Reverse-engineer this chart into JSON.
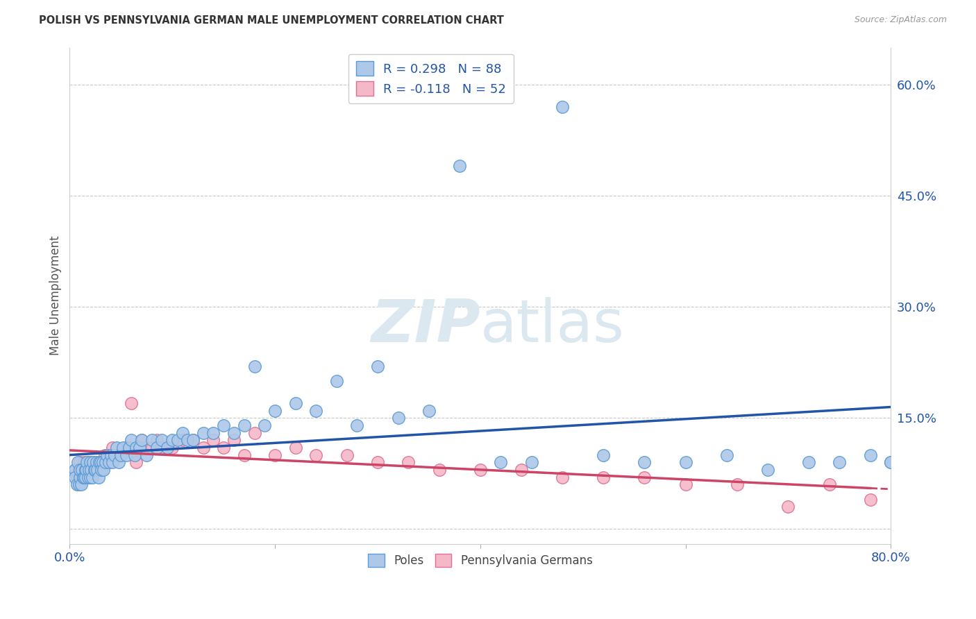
{
  "title": "POLISH VS PENNSYLVANIA GERMAN MALE UNEMPLOYMENT CORRELATION CHART",
  "source": "Source: ZipAtlas.com",
  "ylabel": "Male Unemployment",
  "xlim": [
    0.0,
    0.8
  ],
  "ylim": [
    -0.02,
    0.65
  ],
  "yticks": [
    0.0,
    0.15,
    0.3,
    0.45,
    0.6
  ],
  "ytick_labels": [
    "",
    "15.0%",
    "30.0%",
    "45.0%",
    "60.0%"
  ],
  "background_color": "#ffffff",
  "grid_color": "#c8c8c8",
  "poles_color": "#adc8e8",
  "poles_edge_color": "#5b9bd5",
  "pa_german_color": "#f4b8c8",
  "pa_german_edge_color": "#e07090",
  "trend_poles_color": "#2255aa",
  "trend_pa_color": "#cc4466",
  "legend_text_color": "#2255aa",
  "watermark_color": "#dce8f0",
  "poles_x": [
    0.005,
    0.005,
    0.007,
    0.008,
    0.009,
    0.01,
    0.01,
    0.011,
    0.012,
    0.013,
    0.014,
    0.015,
    0.015,
    0.016,
    0.017,
    0.018,
    0.019,
    0.02,
    0.02,
    0.021,
    0.022,
    0.023,
    0.024,
    0.025,
    0.026,
    0.027,
    0.028,
    0.029,
    0.03,
    0.031,
    0.032,
    0.033,
    0.035,
    0.036,
    0.038,
    0.04,
    0.042,
    0.044,
    0.046,
    0.048,
    0.05,
    0.052,
    0.055,
    0.058,
    0.06,
    0.063,
    0.065,
    0.068,
    0.07,
    0.075,
    0.08,
    0.085,
    0.09,
    0.095,
    0.1,
    0.105,
    0.11,
    0.115,
    0.12,
    0.13,
    0.14,
    0.15,
    0.16,
    0.17,
    0.18,
    0.19,
    0.2,
    0.22,
    0.24,
    0.26,
    0.28,
    0.3,
    0.32,
    0.35,
    0.38,
    0.42,
    0.45,
    0.48,
    0.52,
    0.56,
    0.6,
    0.64,
    0.68,
    0.72,
    0.75,
    0.78,
    0.8,
    0.8
  ],
  "poles_y": [
    0.08,
    0.07,
    0.06,
    0.09,
    0.06,
    0.07,
    0.08,
    0.06,
    0.08,
    0.07,
    0.07,
    0.08,
    0.07,
    0.08,
    0.09,
    0.07,
    0.08,
    0.07,
    0.09,
    0.08,
    0.07,
    0.09,
    0.08,
    0.08,
    0.09,
    0.08,
    0.07,
    0.09,
    0.09,
    0.08,
    0.09,
    0.08,
    0.09,
    0.1,
    0.09,
    0.1,
    0.09,
    0.1,
    0.11,
    0.09,
    0.1,
    0.11,
    0.1,
    0.11,
    0.12,
    0.1,
    0.11,
    0.11,
    0.12,
    0.1,
    0.12,
    0.11,
    0.12,
    0.11,
    0.12,
    0.12,
    0.13,
    0.12,
    0.12,
    0.13,
    0.13,
    0.14,
    0.13,
    0.14,
    0.22,
    0.14,
    0.16,
    0.17,
    0.16,
    0.2,
    0.14,
    0.22,
    0.15,
    0.16,
    0.49,
    0.09,
    0.09,
    0.57,
    0.1,
    0.09,
    0.09,
    0.1,
    0.08,
    0.09,
    0.09,
    0.1,
    0.09,
    0.09
  ],
  "pa_x": [
    0.005,
    0.007,
    0.009,
    0.01,
    0.012,
    0.014,
    0.016,
    0.018,
    0.02,
    0.022,
    0.025,
    0.028,
    0.03,
    0.034,
    0.038,
    0.042,
    0.046,
    0.05,
    0.055,
    0.06,
    0.065,
    0.07,
    0.075,
    0.08,
    0.085,
    0.09,
    0.1,
    0.11,
    0.12,
    0.13,
    0.14,
    0.15,
    0.16,
    0.17,
    0.18,
    0.2,
    0.22,
    0.24,
    0.27,
    0.3,
    0.33,
    0.36,
    0.4,
    0.44,
    0.48,
    0.52,
    0.56,
    0.6,
    0.65,
    0.7,
    0.74,
    0.78
  ],
  "pa_y": [
    0.08,
    0.07,
    0.08,
    0.09,
    0.08,
    0.09,
    0.08,
    0.09,
    0.08,
    0.09,
    0.09,
    0.08,
    0.09,
    0.1,
    0.1,
    0.11,
    0.1,
    0.1,
    0.11,
    0.17,
    0.09,
    0.12,
    0.11,
    0.11,
    0.12,
    0.11,
    0.11,
    0.12,
    0.12,
    0.11,
    0.12,
    0.11,
    0.12,
    0.1,
    0.13,
    0.1,
    0.11,
    0.1,
    0.1,
    0.09,
    0.09,
    0.08,
    0.08,
    0.08,
    0.07,
    0.07,
    0.07,
    0.06,
    0.06,
    0.03,
    0.06,
    0.04
  ]
}
